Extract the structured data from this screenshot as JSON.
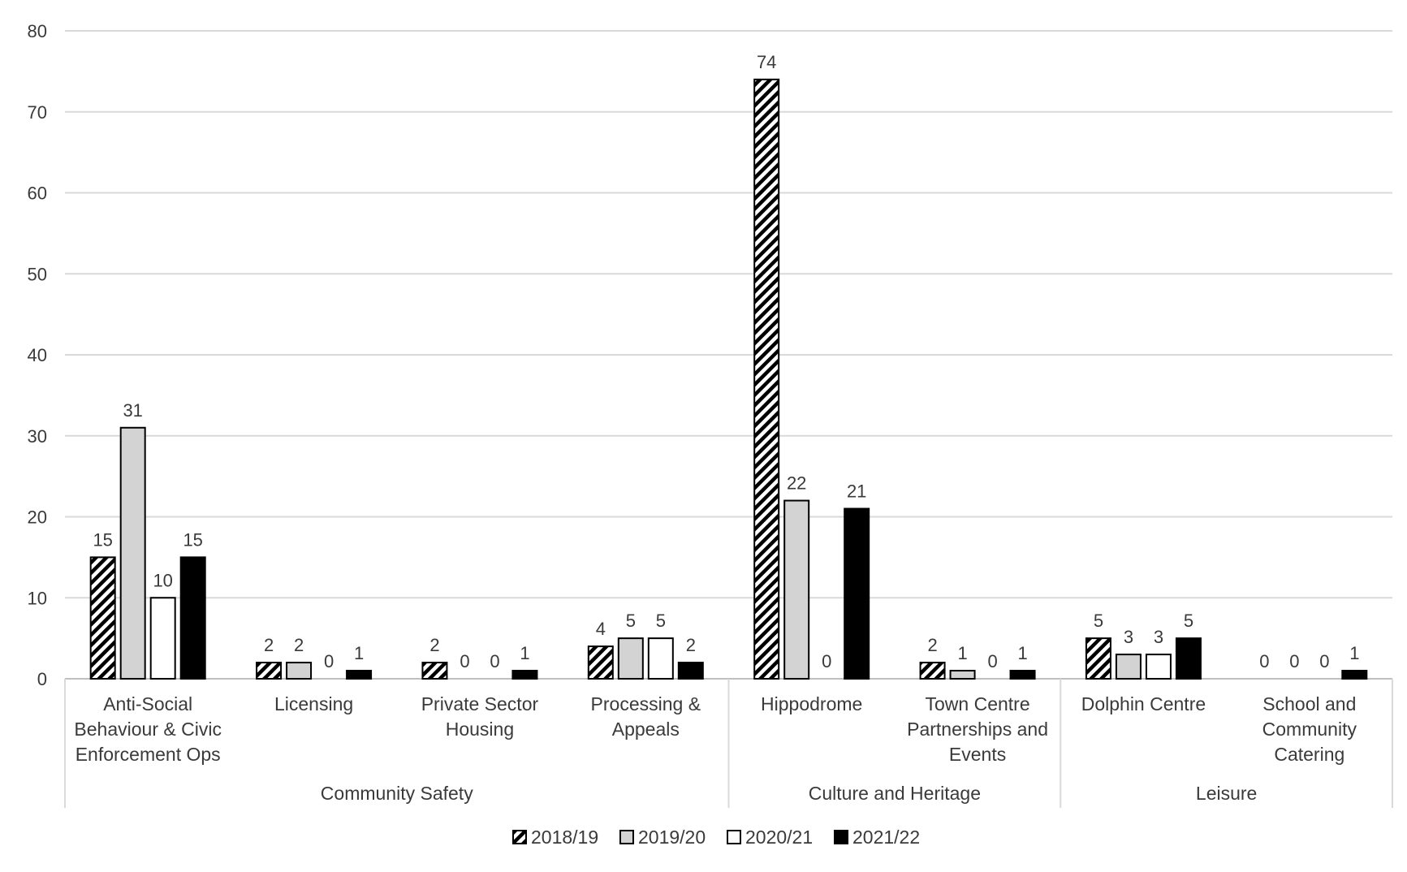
{
  "chart_data": {
    "type": "bar",
    "title": "",
    "xlabel": "",
    "ylabel": "",
    "ylim": [
      0,
      80
    ],
    "yticks": [
      0,
      10,
      20,
      30,
      40,
      50,
      60,
      70,
      80
    ],
    "grid": true,
    "legend_position": "bottom",
    "groups": [
      {
        "label": "Community Safety",
        "categories": [
          0,
          1,
          2,
          3
        ]
      },
      {
        "label": "Culture and Heritage",
        "categories": [
          4,
          5
        ]
      },
      {
        "label": "Leisure",
        "categories": [
          6,
          7
        ]
      }
    ],
    "categories": [
      [
        "Anti-Social",
        "Behaviour & Civic",
        "Enforcement Ops"
      ],
      [
        "Licensing"
      ],
      [
        "Private Sector",
        "Housing"
      ],
      [
        "Processing &",
        "Appeals"
      ],
      [
        "Hippodrome"
      ],
      [
        "Town Centre",
        "Partnerships and",
        "Events"
      ],
      [
        "Dolphin Centre"
      ],
      [
        "School and",
        "Community",
        "Catering"
      ]
    ],
    "series": [
      {
        "name": "2018/19",
        "pattern": "hatch",
        "color": "#000000",
        "values": [
          15,
          2,
          2,
          4,
          74,
          2,
          5,
          0
        ]
      },
      {
        "name": "2019/20",
        "pattern": "solid",
        "color": "#d3d3d3",
        "values": [
          31,
          2,
          0,
          5,
          22,
          1,
          3,
          0
        ]
      },
      {
        "name": "2020/21",
        "pattern": "solid",
        "color": "#ffffff",
        "values": [
          10,
          0,
          0,
          5,
          0,
          0,
          3,
          0
        ]
      },
      {
        "name": "2021/22",
        "pattern": "solid",
        "color": "#000000",
        "values": [
          15,
          1,
          1,
          2,
          21,
          1,
          5,
          1
        ]
      }
    ]
  }
}
